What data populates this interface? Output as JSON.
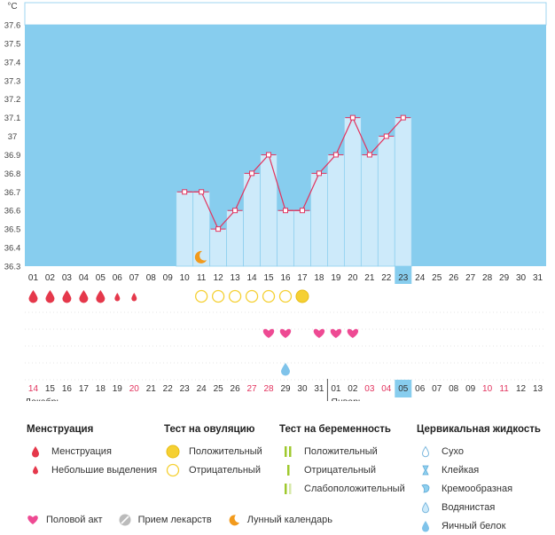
{
  "chart_data": {
    "type": "bar",
    "unit_label": "°C",
    "ylim": [
      36.3,
      37.6
    ],
    "y_ticks": [
      "36.3",
      "36.4",
      "36.5",
      "36.6",
      "36.7",
      "36.8",
      "36.9",
      "37",
      "37.1",
      "37.2",
      "37.3",
      "37.4",
      "37.5",
      "37.6"
    ],
    "cycle_days": [
      "01",
      "02",
      "03",
      "04",
      "05",
      "06",
      "07",
      "08",
      "09",
      "10",
      "11",
      "12",
      "13",
      "14",
      "15",
      "16",
      "17",
      "18",
      "19",
      "20",
      "21",
      "22",
      "23",
      "24",
      "25",
      "26",
      "27",
      "28",
      "29",
      "30",
      "31"
    ],
    "highlight_cycle_day": "23",
    "dates": [
      "14",
      "15",
      "16",
      "17",
      "18",
      "19",
      "20",
      "21",
      "22",
      "23",
      "24",
      "25",
      "26",
      "27",
      "28",
      "29",
      "30",
      "31",
      "01",
      "02",
      "03",
      "04",
      "05",
      "06",
      "07",
      "08",
      "09",
      "10",
      "11",
      "12",
      "13"
    ],
    "weekend_date_indices": [
      0,
      6,
      13,
      14,
      20,
      21,
      27,
      28
    ],
    "highlight_date": "05",
    "month_dec": "Декабрь",
    "month_jan": "Январь",
    "temperature": [
      null,
      null,
      null,
      null,
      null,
      null,
      null,
      null,
      null,
      36.7,
      36.7,
      36.5,
      36.6,
      36.8,
      36.9,
      36.6,
      36.6,
      36.8,
      36.9,
      37.1,
      36.9,
      37.0,
      37.1,
      null,
      null,
      null,
      null,
      null,
      null,
      null,
      null
    ],
    "menstruation": [
      "full",
      "full",
      "full",
      "full",
      "full",
      "light",
      "light",
      null,
      null,
      null,
      null,
      null,
      null,
      null,
      null,
      null,
      null,
      null,
      null,
      null,
      null,
      null,
      null,
      null,
      null,
      null,
      null,
      null,
      null,
      null,
      null
    ],
    "ovulation_tests": [
      null,
      null,
      null,
      null,
      null,
      null,
      null,
      null,
      null,
      null,
      "negative",
      "negative",
      "negative",
      "negative",
      "negative",
      "negative",
      "positive",
      null,
      null,
      null,
      null,
      null,
      null,
      null,
      null,
      null,
      null,
      null,
      null,
      null,
      null
    ],
    "intercourse_days": [
      14,
      15,
      17,
      18,
      19
    ],
    "cervical_fluid": [
      {
        "day": 15,
        "type": "egg-white"
      }
    ],
    "moon_day": 11,
    "colors": {
      "plot_bg": "#87cdee",
      "bar_fill": "#cdeafa",
      "bar_edge": "#8fd0ef",
      "line": "#e2335e",
      "menstruation": "#e5384b",
      "ovulation_positive": "#f5d033",
      "ovulation_negative": "#f5d033",
      "heart": "#ee4a93",
      "moon": "#f29a1c",
      "weekend_text": "#e2335e",
      "highlight_cell": "#87cdee"
    }
  },
  "legend": {
    "menstruation": {
      "title": "Менструация",
      "items": [
        "Менструация",
        "Небольшие выделения"
      ]
    },
    "ovulation": {
      "title": "Тест на овуляцию",
      "items": [
        "Положительный",
        "Отрицательный"
      ]
    },
    "pregnancy": {
      "title": "Тест на беременность",
      "items": [
        "Положительный",
        "Отрицательный",
        "Слабоположительный"
      ]
    },
    "cervical": {
      "title": "Цервикальная жидкость",
      "items": [
        "Сухо",
        "Клейкая",
        "Кремообразная",
        "Водянистая",
        "Яичный белок"
      ]
    },
    "bottom": [
      "Половой акт",
      "Прием лекарств",
      "Лунный календарь"
    ]
  }
}
